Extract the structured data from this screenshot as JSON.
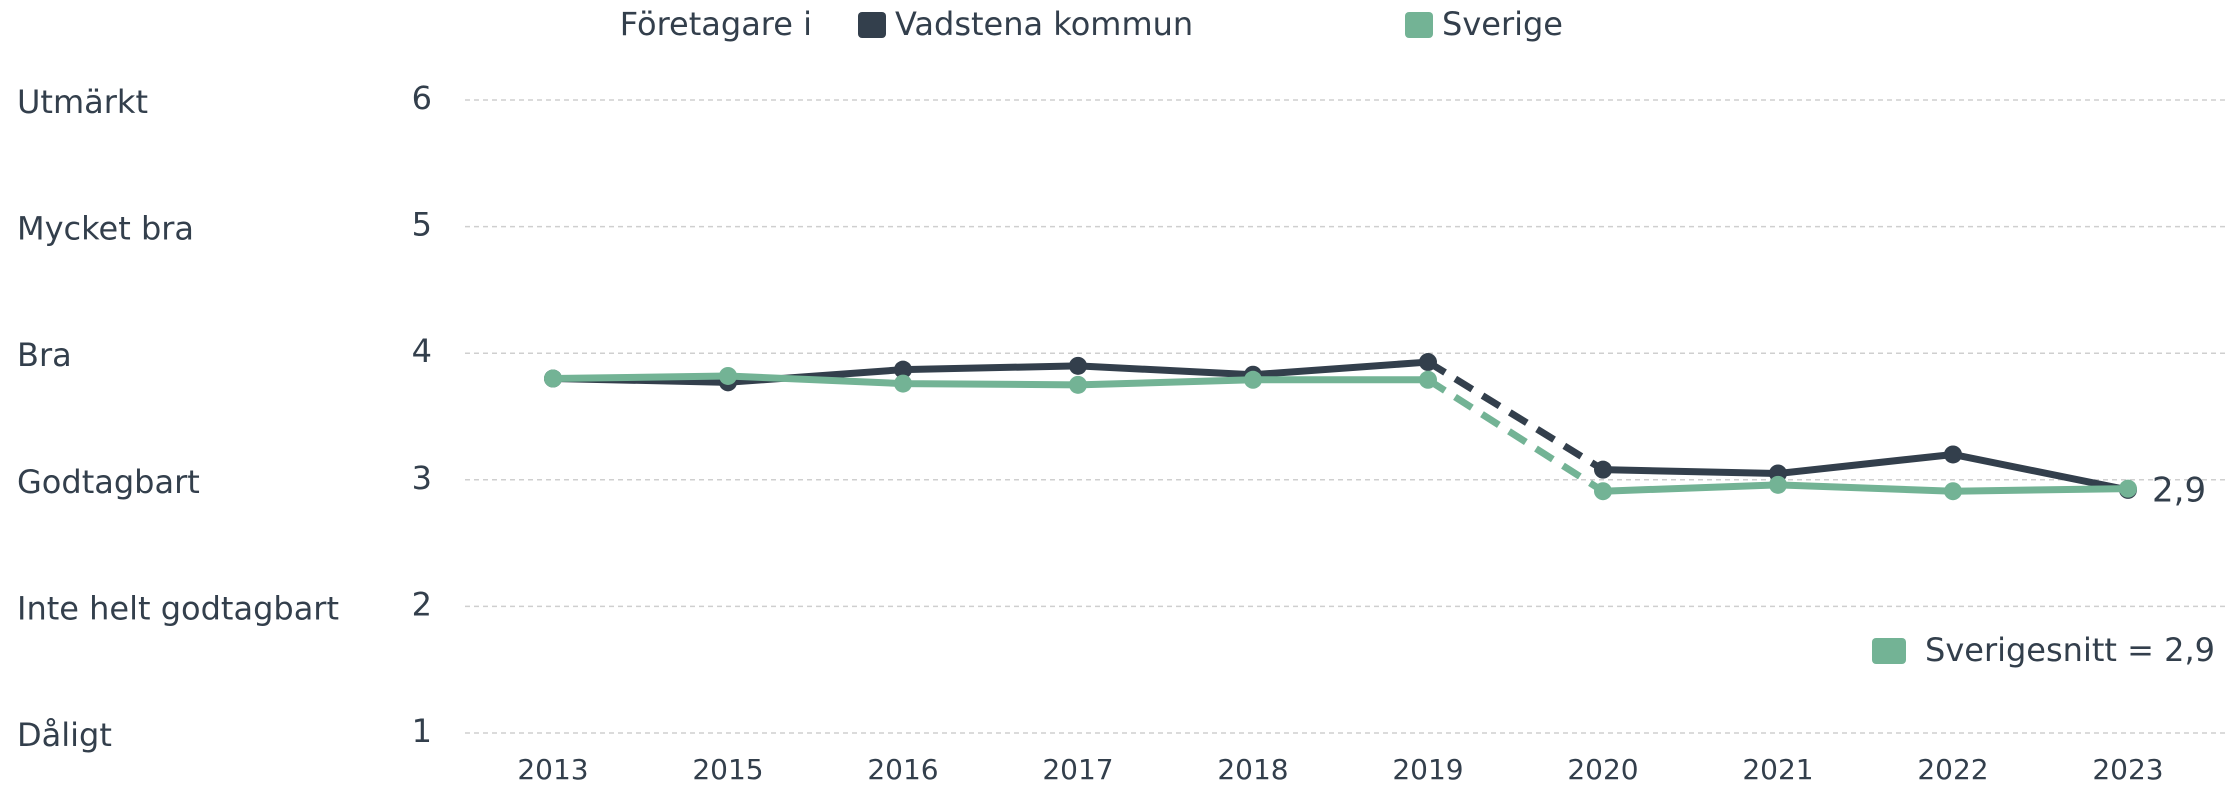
{
  "chart_data": {
    "type": "line",
    "legend_title": "Företagare i",
    "categories": [
      "2013",
      "2015",
      "2016",
      "2017",
      "2018",
      "2019",
      "2020",
      "2021",
      "2022",
      "2023"
    ],
    "series": [
      {
        "name": "Vadstena kommun",
        "color": "#333f4c",
        "values": [
          3.8,
          3.77,
          3.87,
          3.9,
          3.83,
          3.93,
          3.08,
          3.05,
          3.2,
          2.92
        ],
        "value_labels": [
          null,
          null,
          null,
          null,
          null,
          null,
          null,
          null,
          null,
          "2,9"
        ]
      },
      {
        "name": "Sverige",
        "color": "#73b395",
        "values": [
          3.8,
          3.82,
          3.76,
          3.75,
          3.79,
          3.79,
          2.91,
          2.96,
          2.91,
          2.93
        ]
      }
    ],
    "dashed_segments": [
      5
    ],
    "ylim": [
      1,
      6
    ],
    "yticks": [
      1,
      2,
      3,
      4,
      5,
      6
    ],
    "ytick_names": [
      "Dåligt",
      "Inte helt godtagbart",
      "Godtagbart",
      "Bra",
      "Mycket bra",
      "Utmärkt"
    ],
    "annotation": {
      "text": "Sverigesnitt = 2,9",
      "color": "#73b395"
    },
    "grid": true
  }
}
